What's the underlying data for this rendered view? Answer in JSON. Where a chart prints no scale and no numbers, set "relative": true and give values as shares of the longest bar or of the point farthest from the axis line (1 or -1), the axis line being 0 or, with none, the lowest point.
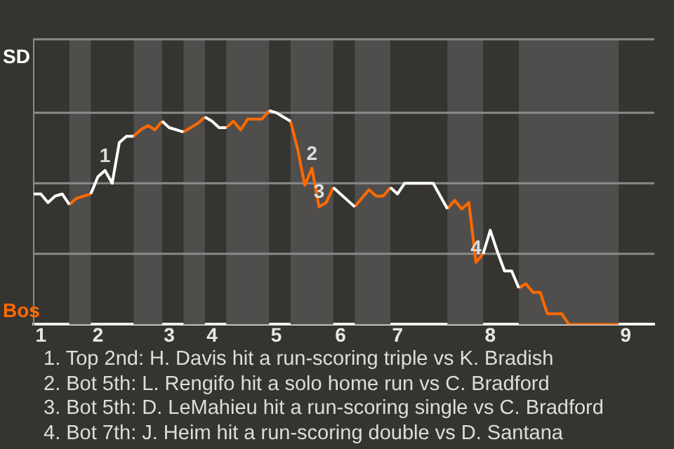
{
  "chart_data": {
    "type": "line",
    "relative": true,
    "categories": [
      null,
      "1",
      null,
      null,
      null,
      null,
      null,
      null,
      null,
      "2",
      null,
      null,
      null,
      null,
      null,
      null,
      null,
      null,
      null,
      "3",
      null,
      null,
      null,
      null,
      null,
      "4",
      null,
      null,
      null,
      null,
      null,
      null,
      null,
      null,
      "5",
      null,
      null,
      null,
      null,
      null,
      null,
      null,
      null,
      "6",
      null,
      null,
      null,
      null,
      null,
      null,
      null,
      "7",
      null,
      null,
      null,
      null,
      null,
      null,
      null,
      null,
      null,
      null,
      null,
      null,
      "8",
      null,
      null,
      null,
      null,
      null,
      null,
      null,
      null,
      null,
      null,
      null,
      null,
      null,
      null,
      null,
      null,
      null,
      null,
      "9",
      null,
      null,
      null,
      null
    ],
    "legend": false,
    "marker": "none",
    "line_style": "solid",
    "series": [
      {
        "name": "SD",
        "color": "#ffffff",
        "values": [
          0.61,
          0.61,
          0.57,
          0.6,
          0.61,
          0.56,
          null,
          null,
          0.61,
          0.69,
          0.72,
          0.66,
          0.85,
          0.88,
          0.88,
          null,
          null,
          null,
          0.95,
          0.92,
          0.91,
          0.9,
          null,
          null,
          0.97,
          0.95,
          0.92,
          0.92,
          null,
          null,
          null,
          null,
          null,
          1,
          0.99,
          0.97,
          0.95,
          null,
          null,
          null,
          null,
          null,
          0.64,
          0.61,
          0.58,
          0.55,
          null,
          null,
          null,
          null,
          0.64,
          0.61,
          0.66,
          0.66,
          0.66,
          0.66,
          0.66,
          0.6,
          0.54,
          null,
          null,
          null,
          null,
          0.33,
          0.44,
          0.34,
          0.25,
          0.25,
          0.17,
          null,
          null,
          null,
          null,
          null,
          null,
          null,
          null,
          null,
          null,
          null,
          null,
          null,
          0,
          0,
          0,
          0,
          0,
          0
        ]
      },
      {
        "name": "Bos",
        "color": "#ff6a00",
        "values": [
          null,
          null,
          null,
          null,
          null,
          0.56,
          0.59,
          0.6,
          0.61,
          null,
          null,
          null,
          null,
          null,
          0.88,
          0.91,
          0.93,
          0.91,
          0.95,
          null,
          null,
          0.9,
          0.92,
          0.94,
          0.97,
          null,
          null,
          0.92,
          0.95,
          0.91,
          0.96,
          0.96,
          0.96,
          1,
          null,
          null,
          0.95,
          0.82,
          0.65,
          0.73,
          0.55,
          0.57,
          0.64,
          null,
          null,
          0.55,
          0.59,
          0.63,
          0.6,
          0.6,
          0.64,
          null,
          null,
          null,
          null,
          null,
          null,
          null,
          0.54,
          0.58,
          0.54,
          0.57,
          0.29,
          0.33,
          null,
          null,
          null,
          null,
          0.17,
          0.19,
          0.15,
          0.15,
          0.05,
          0.05,
          0.05,
          0,
          0,
          0,
          0,
          0,
          0,
          0,
          0,
          null,
          null,
          null,
          null,
          null
        ]
      }
    ],
    "ref_lines": [
      {
        "axis": "y",
        "value": 0.33,
        "color": "#8a8a8a"
      },
      {
        "axis": "y",
        "value": 0.66,
        "color": "#8a8a8a"
      },
      {
        "axis": "y",
        "value": 0.99,
        "color": "#8a8a8a"
      }
    ],
    "annotations": [
      {
        "text": "1",
        "y": 0.72
      },
      {
        "text": "2",
        "y": 0.73
      },
      {
        "text": "3",
        "y": 0.55
      },
      {
        "text": "4",
        "y": 0.29
      },
      "1. Top 2nd: H. Davis hit a run-scoring triple vs K. Bradish",
      "2. Bot 5th: L. Rengifo hit a solo home run vs C. Bradford",
      "3. Bot 5th: D. LeMahieu hit a run-scoring single vs C. Bradford",
      "4. Bot 7th: J. Heim hit a run-scoring double vs D. Santana"
    ]
  }
}
